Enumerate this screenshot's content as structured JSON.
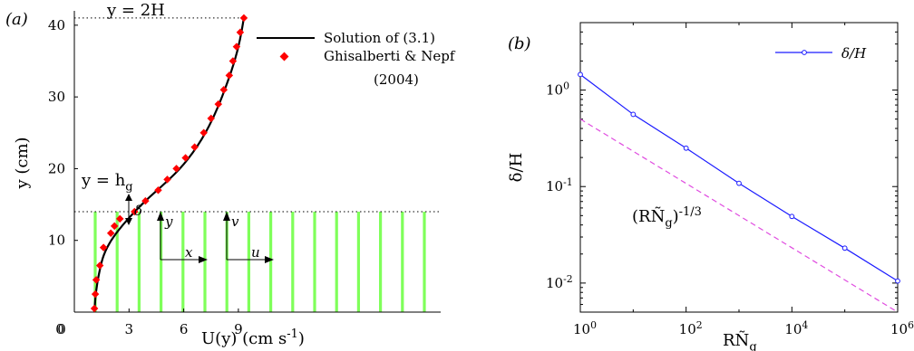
{
  "panel_a": {
    "label": "(a)",
    "top_line_label": "y = 2H",
    "hg_label": "y = h_g",
    "delta_label": "δ",
    "arrow_labels": {
      "y": "y",
      "x": "x",
      "v": "v",
      "u": "u"
    }
  },
  "panel_b": {
    "label": "(b)",
    "slope_label": "(RÑ_g)^{-1/3}"
  },
  "colors": {
    "solution": "#000000",
    "measured": "#ff0000",
    "vegetation": "#7fff5a",
    "delta_over_H": "#1a1aff",
    "scaling_line": "#e04ce0"
  },
  "chart_data": [
    {
      "type": "line",
      "panel": "(a)",
      "xlabel": "U(y)  (cm s^{-1})",
      "ylabel": "y (cm)",
      "xlim": [
        0,
        13
      ],
      "ylim": [
        0,
        42
      ],
      "xticks": [
        0,
        3,
        6,
        9
      ],
      "yticks": [
        10,
        20,
        30,
        40
      ],
      "series": [
        {
          "name": "Solution of (3.1)",
          "style": "line",
          "color": "#000000",
          "x": [
            1.1,
            1.15,
            1.25,
            1.4,
            1.6,
            2.0,
            2.6,
            3.3,
            4.1,
            5.0,
            6.0,
            7.0,
            7.8,
            8.4,
            8.8,
            9.1,
            9.3
          ],
          "y": [
            0,
            2,
            4,
            6,
            8,
            10,
            12,
            14,
            16,
            18,
            20.5,
            24,
            28,
            32,
            35,
            38,
            41
          ]
        },
        {
          "name": "Ghisalberti & Nepf (2004)",
          "style": "marker",
          "color": "#ff0000",
          "x": [
            1.1,
            1.15,
            1.2,
            1.4,
            1.6,
            2.0,
            2.2,
            2.5,
            3.3,
            3.9,
            4.6,
            5.1,
            5.6,
            6.1,
            6.6,
            7.1,
            7.5,
            7.9,
            8.2,
            8.5,
            8.7,
            8.9,
            9.1,
            9.3
          ],
          "y": [
            0.5,
            2.5,
            4.5,
            6.5,
            9,
            11,
            12,
            13,
            14,
            15.5,
            17,
            18.5,
            20,
            21.5,
            23,
            25,
            27,
            29,
            31,
            33,
            35,
            37,
            39,
            41
          ]
        }
      ],
      "reference_lines": {
        "y_2H": 41,
        "y_hg": 14
      }
    },
    {
      "type": "line",
      "panel": "(b)",
      "xlabel": "RÑ_g",
      "ylabel": "δ/H",
      "xscale": "log",
      "yscale": "log",
      "xlim": [
        1,
        1000000
      ],
      "ylim": [
        0.005,
        5
      ],
      "xticks": [
        "10^0",
        "10^2",
        "10^4",
        "10^6"
      ],
      "yticks": [
        "10^{-2}",
        "10^{-1}",
        "10^0"
      ],
      "legend_position": "top-right",
      "series": [
        {
          "name": "δ/H",
          "style": "line-marker",
          "color": "#1a1aff",
          "x": [
            1,
            10,
            100,
            1000,
            10000,
            100000,
            1000000
          ],
          "y": [
            1.45,
            0.56,
            0.25,
            0.108,
            0.049,
            0.023,
            0.0105
          ]
        },
        {
          "name": "(RÑ_g)^{-1/3}",
          "style": "dashed",
          "color": "#e04ce0",
          "x": [
            1,
            1000000
          ],
          "y": [
            0.5,
            0.005
          ]
        }
      ]
    }
  ]
}
